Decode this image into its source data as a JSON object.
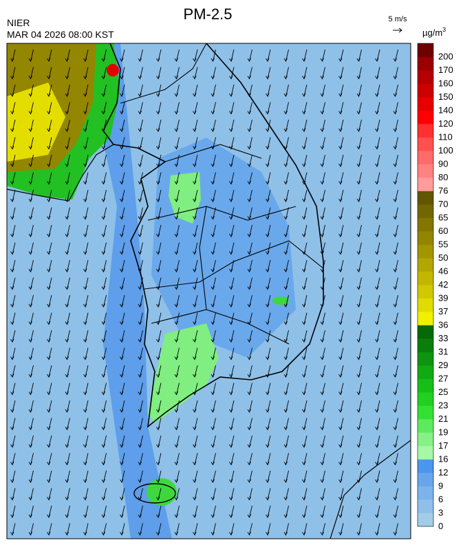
{
  "header": {
    "agency": "NIER",
    "title": "PM-2.5",
    "timestamp": "MAR 04 2026 08:00 KST",
    "wind_scale": "5 m/s",
    "unit": "µg/m",
    "unit_sup": "3"
  },
  "colorbar": {
    "ticks": [
      0,
      3,
      6,
      9,
      12,
      16,
      17,
      19,
      21,
      23,
      25,
      27,
      29,
      31,
      33,
      36,
      37,
      39,
      42,
      46,
      50,
      55,
      60,
      65,
      70,
      76,
      80,
      90,
      100,
      110,
      120,
      140,
      150,
      160,
      170,
      200
    ],
    "colors": [
      "#a3cde6",
      "#90c0e9",
      "#7cb3ea",
      "#68a6ec",
      "#4c96ee",
      "#a6f7a6",
      "#86f186",
      "#5eea5e",
      "#34e034",
      "#22d022",
      "#18be18",
      "#12aa12",
      "#0e940e",
      "#0a7e0a",
      "#056a05",
      "#f0f000",
      "#e0dc00",
      "#d0c800",
      "#c2b600",
      "#b2a600",
      "#a29600",
      "#928600",
      "#827600",
      "#726600",
      "#625600",
      "#ff9c9c",
      "#ff8282",
      "#ff6a6a",
      "#ff5050",
      "#ff3030",
      "#ff0000",
      "#e60000",
      "#cc0000",
      "#b40000",
      "#9a0000",
      "#6e0000"
    ]
  }
}
